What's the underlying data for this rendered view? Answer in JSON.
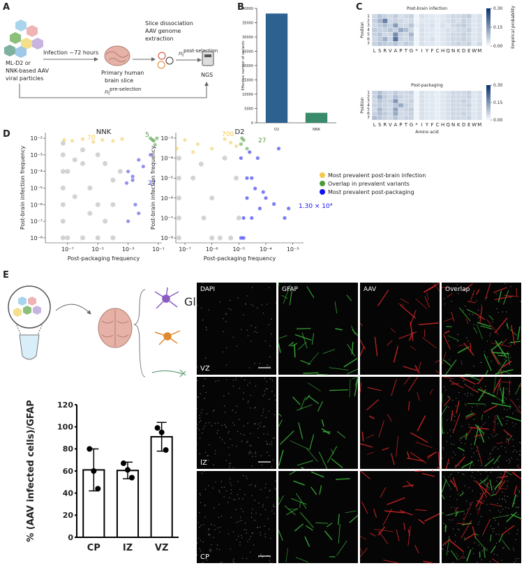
{
  "panels": {
    "a": {
      "letter": "A",
      "particles": [
        "ML-D2 or",
        "NNK-based AAV",
        "viral particles"
      ],
      "infection": "Infection ~72 hours",
      "slice": [
        "Primary human",
        "brain slice"
      ],
      "extraction": [
        "Slice dissociation",
        "AAV genome",
        "extraction"
      ],
      "ngs": "NGS",
      "post_selection": {
        "n": "n",
        "sub": "i",
        "sup": "post-selection"
      },
      "pre_selection": {
        "n": "n",
        "sub": "i",
        "sup": "pre-selection"
      }
    },
    "b": {
      "letter": "B"
    },
    "c": {
      "letter": "C"
    },
    "d": {
      "letter": "D"
    },
    "e": {
      "letter": "E",
      "glia": "Glia",
      "channels": [
        "DAPI",
        "GFAP",
        "AAV",
        "Overlap"
      ],
      "regions": [
        "VZ",
        "IZ",
        "CP"
      ]
    }
  },
  "chart_data": [
    {
      "type": "bar",
      "ylabel": "Effective number of variants",
      "categories": [
        "D2",
        "NNK"
      ],
      "values": [
        38200,
        3500
      ],
      "colors": [
        "#2d6190",
        "#3a8b6b"
      ],
      "ylim": [
        0,
        40000
      ],
      "yticks": [
        0,
        5000,
        10000,
        15000,
        20000,
        25000,
        30000,
        35000,
        40000
      ]
    },
    {
      "type": "heatmap",
      "title": "Post-brain infection",
      "ylabel": "Position",
      "x": [
        "L",
        "S",
        "R",
        "V",
        "A",
        "P",
        "T",
        "G",
        "*",
        "I",
        "Y",
        "F",
        "C",
        "H",
        "Q",
        "N",
        "K",
        "D",
        "E",
        "W",
        "M"
      ],
      "y": [
        1,
        2,
        3,
        4,
        5,
        6,
        7
      ],
      "values": [
        [
          0.05,
          0.08,
          0.06,
          0.05,
          0.07,
          0.04,
          0.05,
          0.06,
          0.01,
          0.04,
          0.03,
          0.03,
          0.02,
          0.03,
          0.04,
          0.05,
          0.05,
          0.06,
          0.07,
          0.03,
          0.04
        ],
        [
          0.06,
          0.1,
          0.18,
          0.05,
          0.06,
          0.05,
          0.04,
          0.05,
          0.01,
          0.03,
          0.03,
          0.03,
          0.02,
          0.03,
          0.04,
          0.05,
          0.04,
          0.06,
          0.05,
          0.03,
          0.04
        ],
        [
          0.05,
          0.07,
          0.09,
          0.06,
          0.14,
          0.05,
          0.05,
          0.08,
          0.02,
          0.04,
          0.03,
          0.04,
          0.02,
          0.04,
          0.03,
          0.05,
          0.06,
          0.07,
          0.05,
          0.03,
          0.04
        ],
        [
          0.07,
          0.06,
          0.06,
          0.08,
          0.06,
          0.12,
          0.09,
          0.05,
          0.01,
          0.04,
          0.03,
          0.03,
          0.02,
          0.03,
          0.04,
          0.04,
          0.05,
          0.05,
          0.06,
          0.03,
          0.04
        ],
        [
          0.06,
          0.08,
          0.05,
          0.05,
          0.16,
          0.06,
          0.05,
          0.1,
          0.01,
          0.04,
          0.03,
          0.03,
          0.02,
          0.03,
          0.04,
          0.05,
          0.05,
          0.06,
          0.05,
          0.03,
          0.04
        ],
        [
          0.05,
          0.07,
          0.11,
          0.05,
          0.2,
          0.06,
          0.05,
          0.07,
          0.01,
          0.04,
          0.03,
          0.04,
          0.02,
          0.03,
          0.04,
          0.05,
          0.05,
          0.06,
          0.05,
          0.03,
          0.04
        ],
        [
          0.06,
          0.08,
          0.07,
          0.06,
          0.08,
          0.05,
          0.07,
          0.06,
          0.01,
          0.04,
          0.03,
          0.03,
          0.02,
          0.03,
          0.04,
          0.05,
          0.06,
          0.05,
          0.06,
          0.03,
          0.05
        ]
      ],
      "clim": [
        0,
        0.3
      ],
      "cbar_label": "Empirical probability",
      "cbar_ticks": [
        {
          "value": 0,
          "label": "0.00"
        },
        0.15,
        {
          "value": 0.3,
          "label": "0.30"
        }
      ]
    },
    {
      "type": "heatmap",
      "title": "Post-packaging",
      "ylabel": "Position",
      "xlabel": "Amino acid",
      "x": [
        "L",
        "S",
        "R",
        "V",
        "A",
        "P",
        "T",
        "G",
        "*",
        "I",
        "Y",
        "F",
        "C",
        "H",
        "Q",
        "N",
        "K",
        "D",
        "E",
        "W",
        "M"
      ],
      "y": [
        1,
        2,
        3,
        4,
        5,
        6,
        7
      ],
      "values": [
        [
          0.06,
          0.09,
          0.06,
          0.05,
          0.07,
          0.05,
          0.05,
          0.06,
          0.01,
          0.04,
          0.03,
          0.03,
          0.02,
          0.03,
          0.04,
          0.05,
          0.05,
          0.05,
          0.06,
          0.03,
          0.04
        ],
        [
          0.06,
          0.12,
          0.07,
          0.05,
          0.09,
          0.06,
          0.05,
          0.05,
          0.01,
          0.04,
          0.03,
          0.03,
          0.02,
          0.03,
          0.04,
          0.05,
          0.05,
          0.05,
          0.06,
          0.03,
          0.04
        ],
        [
          0.05,
          0.08,
          0.06,
          0.06,
          0.15,
          0.05,
          0.05,
          0.06,
          0.01,
          0.04,
          0.03,
          0.03,
          0.02,
          0.03,
          0.04,
          0.05,
          0.05,
          0.06,
          0.05,
          0.03,
          0.04
        ],
        [
          0.06,
          0.07,
          0.06,
          0.05,
          0.08,
          0.12,
          0.06,
          0.05,
          0.01,
          0.04,
          0.03,
          0.03,
          0.02,
          0.03,
          0.04,
          0.05,
          0.05,
          0.05,
          0.06,
          0.03,
          0.04
        ],
        [
          0.05,
          0.1,
          0.06,
          0.05,
          0.13,
          0.05,
          0.06,
          0.07,
          0.01,
          0.04,
          0.03,
          0.03,
          0.02,
          0.03,
          0.04,
          0.05,
          0.05,
          0.05,
          0.05,
          0.03,
          0.04
        ],
        [
          0.06,
          0.09,
          0.07,
          0.05,
          0.12,
          0.05,
          0.05,
          0.06,
          0.01,
          0.04,
          0.03,
          0.03,
          0.02,
          0.03,
          0.04,
          0.05,
          0.05,
          0.06,
          0.05,
          0.03,
          0.04
        ],
        [
          0.09,
          0.08,
          0.06,
          0.05,
          0.08,
          0.05,
          0.06,
          0.06,
          0.01,
          0.04,
          0.03,
          0.03,
          0.02,
          0.03,
          0.04,
          0.05,
          0.05,
          0.05,
          0.06,
          0.03,
          0.04
        ]
      ],
      "clim": [
        0,
        0.3
      ],
      "cbar_ticks": [
        {
          "value": 0,
          "label": "0.00"
        },
        0.15,
        {
          "value": 0.3,
          "label": "0.30"
        }
      ]
    },
    {
      "type": "scatter",
      "title": "NNK",
      "xlabel": "Post-packaging frequency",
      "ylabel": "Post-brain infection frequency",
      "log": true,
      "xlim": [
        3.4e-09,
        0.17
      ],
      "ylim": [
        5e-09,
        0.022
      ],
      "xticks": [
        {
          "value": 1e-07,
          "label": "10⁻⁷"
        },
        {
          "value": 1e-05,
          "label": "10⁻⁵"
        },
        {
          "value": 0.001,
          "label": "10⁻³"
        },
        {
          "value": 0.1,
          "label": "10⁻¹"
        }
      ],
      "yticks": [
        {
          "value": 1e-08,
          "label": "10⁻⁸"
        },
        {
          "value": 1e-07,
          "label": "10⁻⁷"
        },
        {
          "value": 1e-06,
          "label": "10⁻⁶"
        },
        {
          "value": 1e-05,
          "label": "10⁻⁵"
        },
        {
          "value": 0.0001,
          "label": "10⁻⁴"
        },
        {
          "value": 0.001,
          "label": "10⁻³"
        },
        {
          "value": 0.01,
          "label": "10⁻²"
        }
      ],
      "series": [
        {
          "color": "#c8c8c8",
          "x": [
            5e-08,
            5e-08,
            5e-08,
            5e-08,
            5e-08,
            5e-08,
            5e-08,
            1e-07,
            1e-06,
            1e-05,
            0.0001,
            1e-07,
            1e-06,
            1e-05,
            3e-06,
            1e-05,
            3e-05,
            0.0001,
            0.0003,
            1e-06,
            3e-07,
            0.0001,
            3e-06,
            3e-05,
            3e-07
          ],
          "y": [
            1e-08,
            1e-07,
            1e-06,
            1e-05,
            0.0001,
            0.001,
            0.005,
            1e-08,
            1e-08,
            1e-08,
            1e-08,
            0.0001,
            0.0003,
            0.001,
            1e-05,
            1e-06,
            1e-07,
            3e-05,
            0.0001,
            0.002,
            0.0005,
            1e-06,
            3e-07,
            0.0003,
            3e-06
          ]
        },
        {
          "color": "#f2c94c",
          "label": "70",
          "x": [
            6e-08,
            2e-07,
            1e-06,
            5e-06,
            2e-05,
            0.0001,
            0.0004
          ],
          "y": [
            0.008,
            0.007,
            0.009,
            0.006,
            0.008,
            0.007,
            0.009
          ]
        },
        {
          "color": "#4a9a3a",
          "label": "5",
          "x": [
            0.03,
            0.05,
            0.06,
            0.08,
            0.04
          ],
          "y": [
            0.01,
            0.007,
            0.004,
            0.01,
            0.008
          ]
        },
        {
          "color": "#3b3bdd",
          "label": "27",
          "x": [
            0.001,
            0.002,
            0.003,
            0.005,
            0.001,
            0.002,
            0.01,
            0.03,
            0.005,
            0.0008
          ],
          "y": [
            0.0001,
            3e-05,
            1e-06,
            3e-07,
            1e-07,
            5e-05,
            0.0002,
            0.001,
            0.0005,
            2e-05
          ]
        }
      ]
    },
    {
      "type": "scatter",
      "title": "D2",
      "xlabel": "Post-packaging frequency",
      "ylabel": "Post-brain infection frequency",
      "log": true,
      "xlim": [
        4.6e-08,
        0.0025
      ],
      "ylim": [
        5.7e-09,
        0.0019
      ],
      "xticks": [
        {
          "value": 1e-07,
          "label": "10⁻⁷"
        },
        {
          "value": 1e-06,
          "label": "10⁻⁶"
        },
        {
          "value": 1e-05,
          "label": "10⁻⁵"
        },
        {
          "value": 0.0001,
          "label": "10⁻⁴"
        },
        {
          "value": 0.001,
          "label": "10⁻³"
        }
      ],
      "yticks": [
        {
          "value": 1e-08,
          "label": "10⁻⁸"
        },
        {
          "value": 1e-07,
          "label": "10⁻⁷"
        },
        {
          "value": 1e-06,
          "label": "10⁻⁶"
        },
        {
          "value": 1e-05,
          "label": "10⁻⁵"
        },
        {
          "value": 0.0001,
          "label": "10⁻⁴"
        },
        {
          "value": 0.001,
          "label": "10⁻³"
        }
      ],
      "series": [
        {
          "color": "#c8c8c8",
          "x": [
            6e-08,
            6e-08,
            6e-08,
            6e-08,
            6e-08,
            2e-07,
            1e-06,
            3e-06,
            1e-05,
            5e-07,
            2e-06,
            8e-06,
            4e-07,
            1e-06,
            5e-06
          ],
          "y": [
            1e-08,
            1e-07,
            1e-06,
            1e-05,
            0.0001,
            1e-05,
            1e-06,
            0.0001,
            1e-07,
            1e-07,
            1e-08,
            1e-05,
            5e-05,
            1e-08,
            1e-08
          ]
        },
        {
          "name": "Most prevalent post-brain infection",
          "color": "#f2c94c",
          "label": "700",
          "x": [
            5e-08,
            1e-07,
            3e-07,
            1e-06,
            3e-06,
            8e-06,
            2e-07,
            5e-06
          ],
          "y": [
            0.0003,
            0.0008,
            0.0005,
            0.0003,
            0.0009,
            0.0004,
            0.0002,
            0.0006
          ]
        },
        {
          "name": "Overlap in prevalent variants",
          "color": "#4a9a3a",
          "label": "27",
          "x": [
            1.2e-05,
            1.5e-05,
            2e-05,
            1.3e-05
          ],
          "y": [
            0.0005,
            0.0008,
            0.0003,
            0.001
          ]
        },
        {
          "name": "Most prevalent post-packaging",
          "color": "#1010f0",
          "label": "1.30 × 10⁴",
          "x": [
            1.2e-05,
            1.5e-05,
            2e-05,
            3e-05,
            5e-05,
            0.0001,
            1.2e-05,
            2e-05,
            3e-05,
            4e-05,
            6e-05,
            1.5e-05,
            2.5e-05,
            8e-05,
            0.0003,
            0.0005,
            0.0007,
            0.0002
          ],
          "y": [
            1e-08,
            1e-07,
            1e-06,
            1e-05,
            0.0001,
            1e-06,
            0.0001,
            1e-05,
            1e-07,
            3e-06,
            3e-07,
            1e-08,
            0.0002,
            2e-06,
            0.0003,
            1e-07,
            3e-07,
            5e-07
          ]
        }
      ]
    },
    {
      "type": "bar",
      "ylabel": "% (AAV infected cells)/GFAP",
      "categories": [
        "CP",
        "IZ",
        "VZ"
      ],
      "values": [
        61,
        60.5,
        91
      ],
      "errors": [
        19,
        7.5,
        13
      ],
      "points": [
        [
          80,
          60,
          44
        ],
        [
          67,
          61,
          54
        ],
        [
          99,
          95,
          79
        ]
      ],
      "color": "#ffffff",
      "edgecolor": "#000000",
      "ylim": [
        0,
        120
      ],
      "yticks": [
        0,
        20,
        40,
        60,
        80,
        100,
        120
      ]
    }
  ]
}
